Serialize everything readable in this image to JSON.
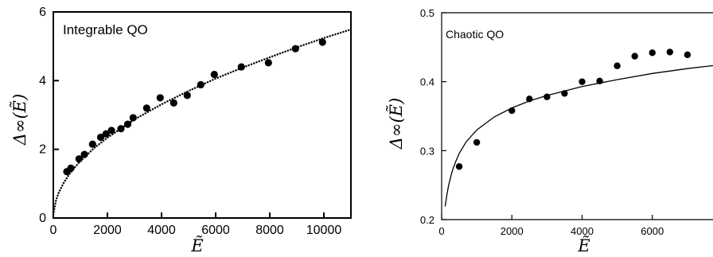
{
  "chart_data": [
    {
      "type": "scatter",
      "annotation": "Integrable QO",
      "xlabel": "Ẽ",
      "ylabel": "Δ∞(Ẽ)",
      "xlim": [
        0,
        11000
      ],
      "ylim": [
        0,
        6
      ],
      "xticks": [
        0,
        2000,
        4000,
        6000,
        8000,
        10000
      ],
      "xtick_labels": [
        "0",
        "2000",
        "4000",
        "6000",
        "8000",
        "10000"
      ],
      "yticks": [
        0,
        2,
        4,
        6
      ],
      "ytick_labels": [
        "0",
        "2",
        "4",
        "6"
      ],
      "grid": false,
      "series": [
        {
          "kind": "points",
          "x": [
            500,
            650,
            950,
            1150,
            1450,
            1750,
            1950,
            2150,
            2500,
            2750,
            2950,
            3450,
            3950,
            4450,
            4950,
            5450,
            5950,
            6950,
            7950,
            8950,
            9950
          ],
          "y": [
            1.35,
            1.45,
            1.72,
            1.85,
            2.15,
            2.35,
            2.45,
            2.55,
            2.6,
            2.73,
            2.92,
            3.2,
            3.5,
            3.35,
            3.57,
            3.88,
            4.18,
            4.4,
            4.52,
            4.93,
            5.12
          ]
        },
        {
          "kind": "curve",
          "style": "dotted",
          "x": [
            0,
            100,
            200,
            400,
            600,
            800,
            1000,
            1500,
            2000,
            3000,
            4000,
            5000,
            6000,
            7000,
            8000,
            9000,
            10000,
            11000
          ],
          "y": [
            0.1,
            0.52,
            0.74,
            1.05,
            1.28,
            1.48,
            1.66,
            2.03,
            2.34,
            2.87,
            3.31,
            3.7,
            4.06,
            4.38,
            4.68,
            4.97,
            5.24,
            5.49
          ]
        }
      ]
    },
    {
      "type": "scatter",
      "annotation": "Chaotic QO",
      "xlabel": "Ẽ",
      "ylabel": "Δ∞(Ẽ)",
      "xlim": [
        0,
        8000
      ],
      "ylim": [
        0.2,
        0.5
      ],
      "xticks": [
        0,
        2000,
        4000,
        6000
      ],
      "xtick_labels": [
        "0",
        "2000",
        "4000",
        "6000"
      ],
      "yticks": [
        0.2,
        0.3,
        0.4,
        0.5
      ],
      "ytick_labels": [
        "0.2",
        "0.3",
        "0.4",
        "0.5"
      ],
      "grid": false,
      "series": [
        {
          "kind": "points",
          "x": [
            500,
            1000,
            2000,
            2500,
            3000,
            3500,
            4000,
            4500,
            5000,
            5500,
            6000,
            6500,
            7000
          ],
          "y": [
            0.277,
            0.312,
            0.358,
            0.375,
            0.378,
            0.383,
            0.4,
            0.401,
            0.423,
            0.437,
            0.442,
            0.443,
            0.439
          ]
        },
        {
          "kind": "curve",
          "style": "solid",
          "x": [
            100,
            150,
            200,
            300,
            400,
            500,
            700,
            1000,
            1500,
            2000,
            2500,
            3000,
            4000,
            5000,
            6000,
            7000,
            8000
          ],
          "y": [
            0.219,
            0.236,
            0.25,
            0.27,
            0.284,
            0.296,
            0.313,
            0.33,
            0.349,
            0.362,
            0.372,
            0.38,
            0.393,
            0.403,
            0.412,
            0.419,
            0.425
          ]
        }
      ]
    }
  ]
}
